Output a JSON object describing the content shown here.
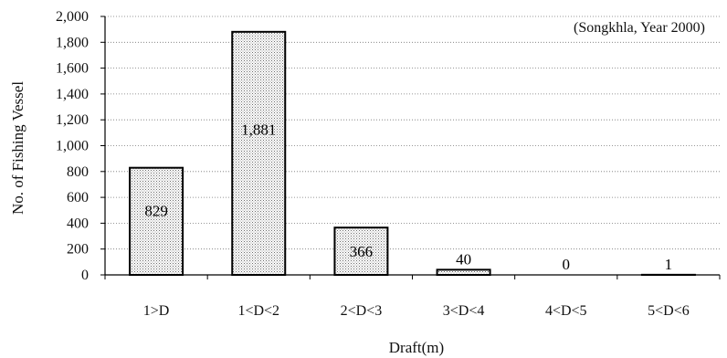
{
  "chart_data": {
    "type": "bar",
    "categories": [
      "1>D",
      "1<D<2",
      "2<D<3",
      "3<D<4",
      "4<D<5",
      "5<D<6"
    ],
    "values": [
      829,
      1881,
      366,
      40,
      0,
      1
    ],
    "data_labels": [
      "829",
      "1,881",
      "366",
      "40",
      "0",
      "1"
    ],
    "annotation": "(Songkhla, Year 2000)",
    "xlabel": "Draft(m)",
    "ylabel": "No. of Fishing Vessel",
    "ylim": [
      0,
      2000
    ],
    "yticks": [
      0,
      200,
      400,
      600,
      800,
      1000,
      1200,
      1400,
      1600,
      1800,
      2000
    ],
    "ytick_labels": [
      "0",
      "200",
      "400",
      "600",
      "800",
      "1,000",
      "1,200",
      "1,400",
      "1,600",
      "1,800",
      "2,000"
    ],
    "grid": true,
    "bar_fill": "#c8c8c8",
    "bar_edge": "#000000"
  }
}
